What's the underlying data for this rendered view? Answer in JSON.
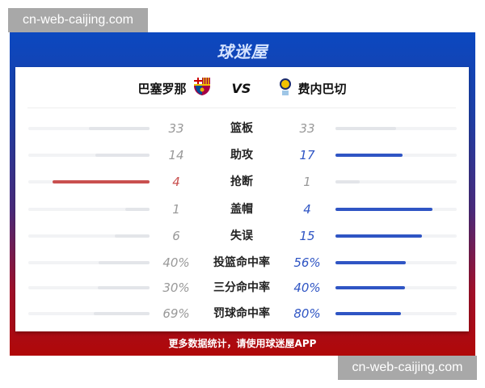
{
  "watermark": "cn-web-caijing.com",
  "logo": "球迷屋",
  "match": {
    "home": "巴塞罗那",
    "vs": "VS",
    "away": "费内巴切"
  },
  "colors": {
    "home": "#c9504f",
    "away": "#2f55c4",
    "neutral_bar": "#e3e5e9",
    "neutral_text": "#999999"
  },
  "stats": [
    {
      "label": "篮板",
      "home": "33",
      "away": "33",
      "home_share": 0.5,
      "away_share": 0.5,
      "leader": "none"
    },
    {
      "label": "助攻",
      "home": "14",
      "away": "17",
      "home_share": 0.45,
      "away_share": 0.55,
      "leader": "away"
    },
    {
      "label": "抢断",
      "home": "4",
      "away": "1",
      "home_share": 0.8,
      "away_share": 0.2,
      "leader": "home"
    },
    {
      "label": "盖帽",
      "home": "1",
      "away": "4",
      "home_share": 0.2,
      "away_share": 0.8,
      "leader": "away"
    },
    {
      "label": "失误",
      "home": "6",
      "away": "15",
      "home_share": 0.29,
      "away_share": 0.71,
      "leader": "away"
    },
    {
      "label": "投篮命中率",
      "home": "40%",
      "away": "56%",
      "home_share": 0.42,
      "away_share": 0.58,
      "leader": "away"
    },
    {
      "label": "三分命中率",
      "home": "30%",
      "away": "40%",
      "home_share": 0.43,
      "away_share": 0.57,
      "leader": "away"
    },
    {
      "label": "罚球命中率",
      "home": "69%",
      "away": "80%",
      "home_share": 0.46,
      "away_share": 0.54,
      "leader": "away"
    }
  ],
  "footer": "更多数据统计，请使用球迷屋APP"
}
